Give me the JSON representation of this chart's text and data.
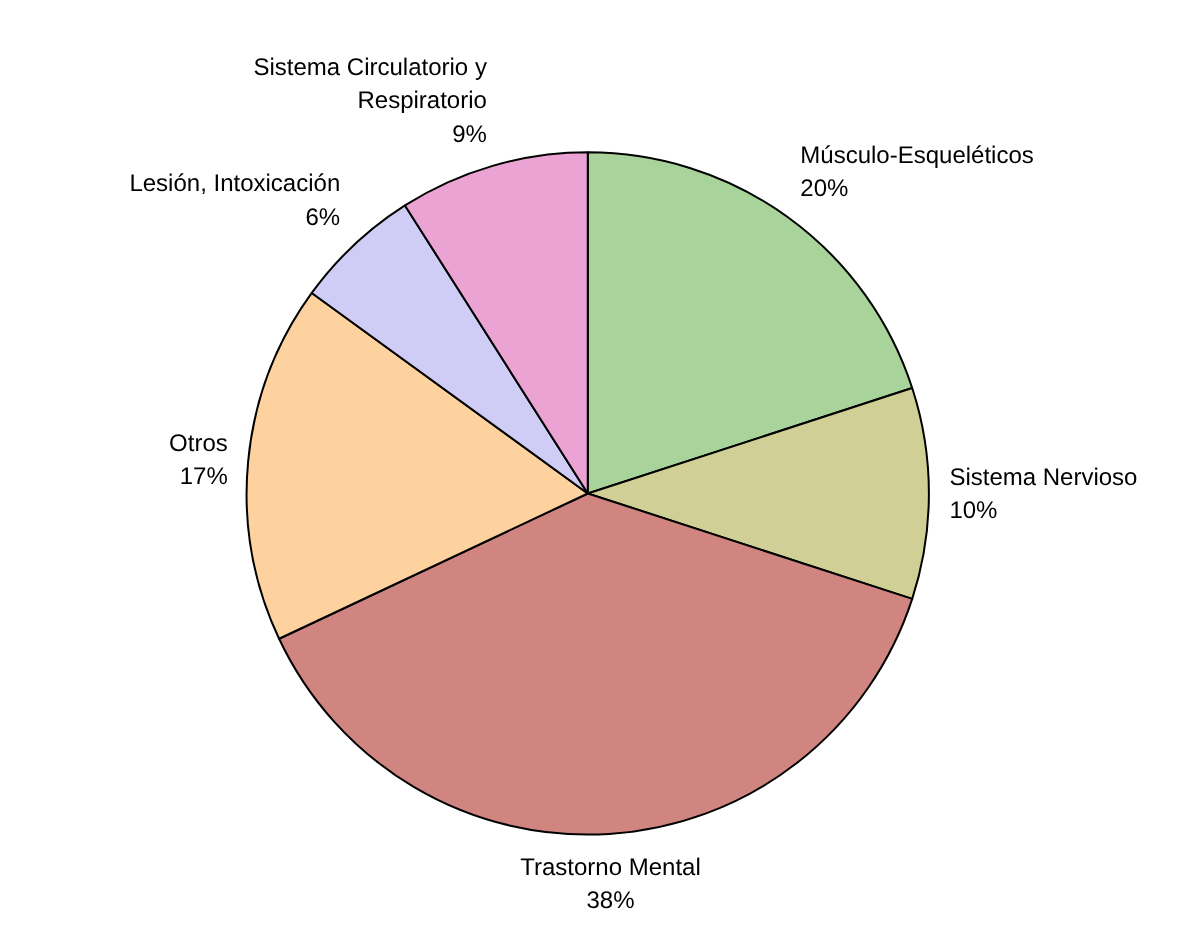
{
  "chart_data": {
    "type": "pie",
    "categories": [
      "Músculo-Esqueléticos",
      "Sistema Nervioso",
      "Trastorno Mental",
      "Otros",
      "Lesión, Intoxicación",
      "Sistema Circulatorio y Respiratorio"
    ],
    "values": [
      20,
      10,
      38,
      17,
      6,
      9
    ],
    "value_labels": [
      "20%",
      "10%",
      "38%",
      "17%",
      "6%",
      "9%"
    ],
    "colors": [
      "#a8d49b",
      "#d0cf95",
      "#d08580",
      "#fdd29e",
      "#cfcdf5",
      "#eba3d3"
    ],
    "legend": false
  }
}
